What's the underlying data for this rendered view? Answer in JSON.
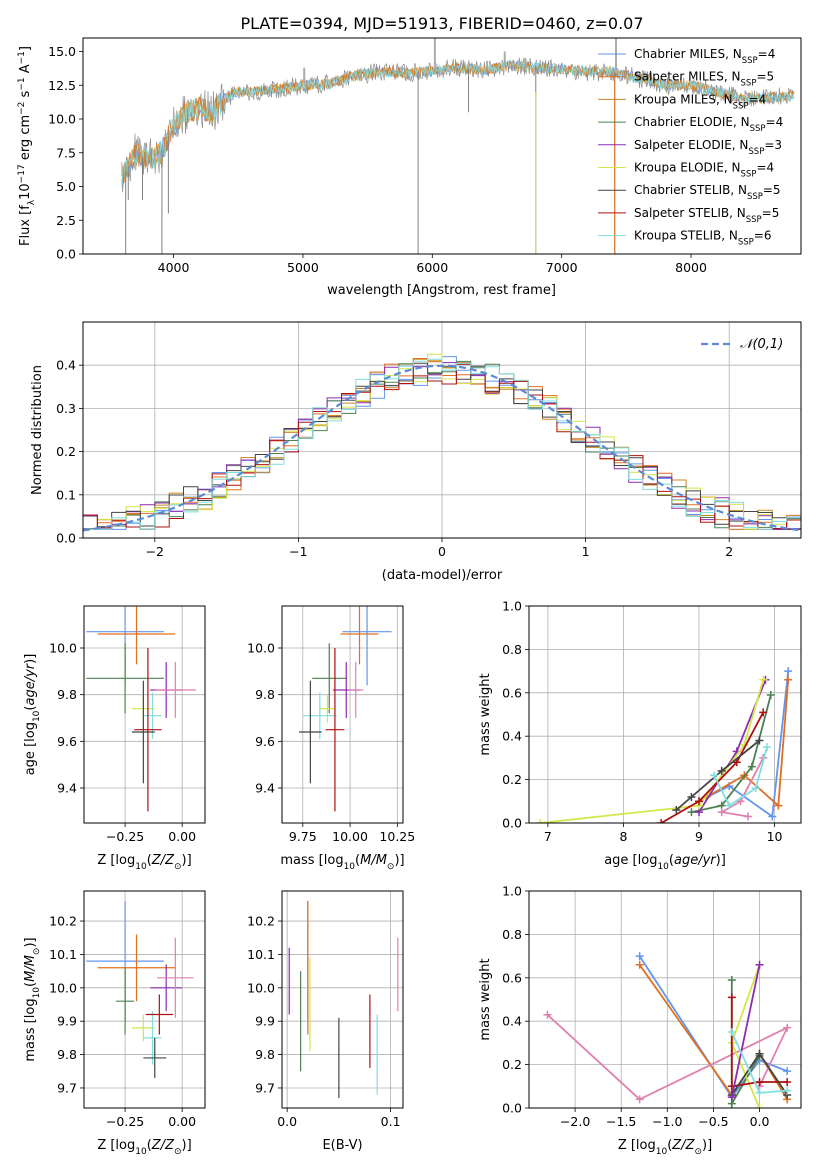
{
  "title": "PLATE=0394, MJD=51913, FIBERID=0460, z=0.07",
  "colors": {
    "chabrier_miles": "#6495ed",
    "salpeter_miles": "#e07020",
    "kroupa_miles": "#cc8822",
    "chabrier_elodie": "#4d8050",
    "salpeter_elodie": "#8e2bb0",
    "kroupa_elodie": "#d4e64a",
    "chabrier_stelib": "#444444",
    "salpeter_stelib": "#b01010",
    "kroupa_stelib": "#80dde0",
    "extra_pink": "#e080b0",
    "spectrum_grey": "#808080",
    "normal_curve": "#5b8bd6",
    "grid": "#b0b0b0"
  },
  "chart_data": [
    {
      "id": "spectrum",
      "type": "line",
      "title": "PLATE=0394, MJD=51913, FIBERID=0460, z=0.07",
      "xlabel": "wavelength [Angstrom, rest frame]",
      "ylabel": "Flux [f",
      "ylabel_full": "Flux [fλ10−17 erg cm−2 s−1 A−1]",
      "xlim": [
        3300,
        8850
      ],
      "ylim": [
        0,
        16
      ],
      "xticks": [
        4000,
        5000,
        6000,
        7000,
        8000
      ],
      "yticks": [
        0.0,
        2.5,
        5.0,
        7.5,
        10.0,
        12.5,
        15.0
      ],
      "grid": false,
      "legend_placement": "right",
      "legend": [
        {
          "label": "Chabrier MILES, N",
          "sub": "SSP",
          "suffix": "=4",
          "color_key": "chabrier_miles"
        },
        {
          "label": "Salpeter MILES, N",
          "sub": "SSP",
          "suffix": "=5",
          "color_key": "salpeter_miles"
        },
        {
          "label": "Kroupa MILES, N",
          "sub": "SSP",
          "suffix": "=4",
          "color_key": "kroupa_miles"
        },
        {
          "label": "Chabrier ELODIE, N",
          "sub": "SSP",
          "suffix": "=4",
          "color_key": "chabrier_elodie"
        },
        {
          "label": "Salpeter ELODIE, N",
          "sub": "SSP",
          "suffix": "=3",
          "color_key": "salpeter_elodie"
        },
        {
          "label": "Kroupa ELODIE, N",
          "sub": "SSP",
          "suffix": "=4",
          "color_key": "kroupa_elodie"
        },
        {
          "label": "Chabrier STELIB, N",
          "sub": "SSP",
          "suffix": "=5",
          "color_key": "chabrier_stelib"
        },
        {
          "label": "Salpeter STELIB, N",
          "sub": "SSP",
          "suffix": "=5",
          "color_key": "salpeter_stelib"
        },
        {
          "label": "Kroupa STELIB, N",
          "sub": "SSP",
          "suffix": "=6",
          "color_key": "kroupa_stelib"
        }
      ],
      "continuum": [
        [
          3600,
          5.5
        ],
        [
          3700,
          7.5
        ],
        [
          3800,
          7.0
        ],
        [
          3900,
          7.5
        ],
        [
          4000,
          9.5
        ],
        [
          4100,
          10.5
        ],
        [
          4200,
          10.8
        ],
        [
          4300,
          10.5
        ],
        [
          4400,
          11.5
        ],
        [
          4500,
          12.0
        ],
        [
          4600,
          12.0
        ],
        [
          4800,
          12.2
        ],
        [
          5000,
          12.5
        ],
        [
          5200,
          12.6
        ],
        [
          5400,
          13.2
        ],
        [
          5600,
          13.5
        ],
        [
          5800,
          13.4
        ],
        [
          6000,
          13.6
        ],
        [
          6200,
          13.8
        ],
        [
          6400,
          13.6
        ],
        [
          6600,
          14.0
        ],
        [
          6800,
          13.8
        ],
        [
          7000,
          13.7
        ],
        [
          7200,
          13.5
        ],
        [
          7400,
          13.5
        ],
        [
          7600,
          13.0
        ],
        [
          7800,
          12.5
        ],
        [
          8000,
          12.5
        ],
        [
          8200,
          12.0
        ],
        [
          8400,
          11.5
        ],
        [
          8600,
          11.6
        ],
        [
          8800,
          11.7
        ]
      ],
      "absorption_spikes": [
        [
          3630,
          0.0
        ],
        [
          3650,
          4.0
        ],
        [
          3910,
          0.0
        ],
        [
          3960,
          3.0
        ],
        [
          5890,
          0.0
        ],
        [
          6280,
          10.5
        ],
        [
          6800,
          0.0
        ],
        [
          7410,
          0.0
        ],
        [
          7600,
          13.5
        ],
        [
          3760,
          4.0
        ]
      ],
      "emission_spikes": [
        [
          6560,
          15.0
        ],
        [
          5010,
          13.8
        ],
        [
          6720,
          14.5
        ],
        [
          6020,
          16.0
        ],
        [
          7020,
          13.8
        ],
        [
          7420,
          16.0
        ]
      ]
    },
    {
      "id": "residuals",
      "type": "line",
      "xlabel": "(data-model)/error",
      "ylabel": "Normed distribution",
      "xlim": [
        -2.5,
        2.5
      ],
      "ylim": [
        0,
        0.5
      ],
      "xticks": [
        -2,
        -1,
        0,
        1,
        2
      ],
      "yticks": [
        0.0,
        0.1,
        0.2,
        0.3,
        0.4
      ],
      "grid": true,
      "legend_placement": "top-right",
      "legend": [
        {
          "label": "𝒩(0,1)",
          "color_key": "normal_curve",
          "dashed": true
        }
      ],
      "bin_width": 0.1,
      "series_count": 9
    },
    {
      "id": "z-age",
      "type": "scatter",
      "xlabel": "Z [log",
      "xlabel_full": "Z [log10(Z/Z⊙)]",
      "ylabel": "age  [log",
      "ylabel_full": "age [log10(age/yr)]",
      "xlim": [
        -0.43,
        0.1
      ],
      "ylim": [
        9.25,
        10.18
      ],
      "xticks": [
        -0.25,
        0.0
      ],
      "xtick_labels": [
        "−0.25",
        "0.00"
      ],
      "yticks": [
        9.4,
        9.6,
        9.8,
        10.0
      ],
      "grid": true,
      "points": [
        {
          "x": -0.25,
          "y": 10.07,
          "xerr": 0.17,
          "yerr": 0.23,
          "color_key": "chabrier_miles"
        },
        {
          "x": -0.2,
          "y": 10.06,
          "xerr": 0.17,
          "yerr": 0.13,
          "color_key": "salpeter_miles"
        },
        {
          "x": -0.25,
          "y": 9.87,
          "xerr": 0.17,
          "yerr": 0.15,
          "color_key": "chabrier_elodie"
        },
        {
          "x": -0.07,
          "y": 9.82,
          "xerr": 0.07,
          "yerr": 0.12,
          "color_key": "salpeter_elodie"
        },
        {
          "x": -0.03,
          "y": 9.82,
          "xerr": 0.09,
          "yerr": 0.12,
          "color_key": "extra_pink"
        },
        {
          "x": -0.17,
          "y": 9.74,
          "xerr": 0.05,
          "yerr": 0.06,
          "color_key": "kroupa_elodie"
        },
        {
          "x": -0.13,
          "y": 9.71,
          "xerr": 0.04,
          "yerr": 0.1,
          "color_key": "kroupa_stelib"
        },
        {
          "x": -0.15,
          "y": 9.65,
          "xerr": 0.06,
          "yerr": 0.35,
          "color_key": "salpeter_stelib"
        },
        {
          "x": -0.17,
          "y": 9.64,
          "xerr": 0.05,
          "yerr": 0.22,
          "color_key": "chabrier_stelib"
        }
      ]
    },
    {
      "id": "mass-age",
      "type": "scatter",
      "xlabel": "mass [log",
      "xlabel_full": "mass [log10(M/M⊙)]",
      "xlim": [
        9.64,
        10.28
      ],
      "ylim": [
        9.25,
        10.18
      ],
      "xticks": [
        9.75,
        10.0,
        10.25
      ],
      "xtick_labels": [
        "9.75",
        "10.00",
        "10.25"
      ],
      "yticks": [
        9.4,
        9.6,
        9.8,
        10.0
      ],
      "grid": true,
      "points": [
        {
          "x": 10.09,
          "y": 10.07,
          "xerr": 0.13,
          "yerr": 0.23,
          "color_key": "chabrier_miles"
        },
        {
          "x": 10.05,
          "y": 10.06,
          "xerr": 0.1,
          "yerr": 0.13,
          "color_key": "salpeter_miles"
        },
        {
          "x": 9.89,
          "y": 9.87,
          "xerr": 0.09,
          "yerr": 0.15,
          "color_key": "chabrier_elodie"
        },
        {
          "x": 9.98,
          "y": 9.82,
          "xerr": 0.07,
          "yerr": 0.12,
          "color_key": "salpeter_elodie"
        },
        {
          "x": 10.03,
          "y": 9.82,
          "xerr": 0.04,
          "yerr": 0.12,
          "color_key": "extra_pink"
        },
        {
          "x": 9.88,
          "y": 9.74,
          "xerr": 0.04,
          "yerr": 0.06,
          "color_key": "kroupa_elodie"
        },
        {
          "x": 9.84,
          "y": 9.71,
          "xerr": 0.09,
          "yerr": 0.1,
          "color_key": "kroupa_stelib"
        },
        {
          "x": 9.92,
          "y": 9.65,
          "xerr": 0.05,
          "yerr": 0.35,
          "color_key": "salpeter_stelib"
        },
        {
          "x": 9.79,
          "y": 9.64,
          "xerr": 0.06,
          "yerr": 0.22,
          "color_key": "chabrier_stelib"
        }
      ]
    },
    {
      "id": "age-weight",
      "type": "line",
      "xlabel": "age  [log",
      "xlabel_full": "age [log10(age/yr)]",
      "ylabel": "mass weight",
      "xlim": [
        6.75,
        10.35
      ],
      "ylim": [
        0,
        1.0
      ],
      "xticks": [
        7,
        8,
        9,
        10
      ],
      "yticks": [
        0.0,
        0.2,
        0.4,
        0.6,
        0.8,
        1.0
      ],
      "grid": true,
      "series": [
        {
          "color_key": "chabrier_miles",
          "x": [
            10.18,
            9.97,
            9.4,
            9.0
          ],
          "y": [
            0.7,
            0.03,
            0.17,
            0.1
          ]
        },
        {
          "color_key": "salpeter_miles",
          "x": [
            10.18,
            10.05,
            9.6,
            9.1
          ],
          "y": [
            0.66,
            0.08,
            0.22,
            0.12
          ]
        },
        {
          "color_key": "chabrier_elodie",
          "x": [
            9.95,
            9.7,
            9.3,
            8.9
          ],
          "y": [
            0.59,
            0.26,
            0.08,
            0.05
          ]
        },
        {
          "color_key": "salpeter_elodie",
          "x": [
            9.88,
            9.5,
            9.0
          ],
          "y": [
            0.66,
            0.33,
            0.05
          ]
        },
        {
          "color_key": "kroupa_elodie",
          "x": [
            9.85,
            9.6,
            9.0,
            6.9
          ],
          "y": [
            0.66,
            0.36,
            0.08,
            0.0
          ]
        },
        {
          "color_key": "salpeter_stelib",
          "x": [
            9.85,
            9.5,
            9.0,
            8.5
          ],
          "y": [
            0.51,
            0.28,
            0.1,
            0.0
          ]
        },
        {
          "color_key": "chabrier_stelib",
          "x": [
            9.8,
            9.3,
            8.9,
            8.7
          ],
          "y": [
            0.38,
            0.24,
            0.12,
            0.06
          ]
        },
        {
          "color_key": "extra_pink",
          "x": [
            9.85,
            9.55,
            9.3,
            9.65
          ],
          "y": [
            0.3,
            0.1,
            0.05,
            0.03
          ]
        },
        {
          "color_key": "kroupa_stelib",
          "x": [
            9.9,
            9.75,
            9.4,
            9.2
          ],
          "y": [
            0.35,
            0.16,
            0.08,
            0.22
          ]
        }
      ]
    },
    {
      "id": "z-mass",
      "type": "scatter",
      "xlabel": "Z [log",
      "xlabel_full": "Z [log10(Z/Z⊙)]",
      "ylabel": "mass [log",
      "ylabel_full": "mass [log10(M/M⊙)]",
      "xlim": [
        -0.43,
        0.1
      ],
      "ylim": [
        9.64,
        10.29
      ],
      "xticks": [
        -0.25,
        0.0
      ],
      "xtick_labels": [
        "−0.25",
        "0.00"
      ],
      "yticks": [
        9.7,
        9.8,
        9.9,
        10.0,
        10.1,
        10.2
      ],
      "grid": true,
      "points": [
        {
          "x": -0.25,
          "y": 10.08,
          "xerr": 0.17,
          "yerr": 0.18,
          "color_key": "chabrier_miles"
        },
        {
          "x": -0.2,
          "y": 10.06,
          "xerr": 0.17,
          "yerr": 0.1,
          "color_key": "salpeter_miles"
        },
        {
          "x": -0.25,
          "y": 9.96,
          "xerr": 0.04,
          "yerr": 0.1,
          "color_key": "chabrier_elodie"
        },
        {
          "x": -0.07,
          "y": 10.0,
          "xerr": 0.07,
          "yerr": 0.07,
          "color_key": "salpeter_elodie"
        },
        {
          "x": -0.03,
          "y": 10.03,
          "xerr": 0.08,
          "yerr": 0.12,
          "color_key": "extra_pink"
        },
        {
          "x": -0.17,
          "y": 9.88,
          "xerr": 0.05,
          "yerr": 0.04,
          "color_key": "kroupa_elodie"
        },
        {
          "x": -0.13,
          "y": 9.85,
          "xerr": 0.04,
          "yerr": 0.08,
          "color_key": "kroupa_stelib"
        },
        {
          "x": -0.1,
          "y": 9.92,
          "xerr": 0.06,
          "yerr": 0.06,
          "color_key": "salpeter_stelib"
        },
        {
          "x": -0.12,
          "y": 9.79,
          "xerr": 0.05,
          "yerr": 0.06,
          "color_key": "chabrier_stelib"
        }
      ]
    },
    {
      "id": "ebv-mass",
      "type": "scatter",
      "xlabel": "E(B-V)",
      "xlim": [
        -0.005,
        0.112
      ],
      "ylim": [
        9.64,
        10.29
      ],
      "xticks": [
        0.0,
        0.1
      ],
      "xtick_labels": [
        "0.0",
        "0.1"
      ],
      "yticks": [
        9.7,
        9.8,
        9.9,
        10.0,
        10.1,
        10.2
      ],
      "grid": true,
      "points": [
        {
          "x": 0.02,
          "y": 10.08,
          "yerr": 0.18,
          "color_key": "chabrier_miles"
        },
        {
          "x": 0.02,
          "y": 10.06,
          "yerr": 0.2,
          "color_key": "salpeter_miles"
        },
        {
          "x": 0.013,
          "y": 9.9,
          "yerr": 0.15,
          "color_key": "chabrier_elodie"
        },
        {
          "x": 0.002,
          "y": 10.02,
          "yerr": 0.1,
          "color_key": "salpeter_elodie"
        },
        {
          "x": 0.107,
          "y": 10.04,
          "yerr": 0.11,
          "color_key": "extra_pink"
        },
        {
          "x": 0.022,
          "y": 9.95,
          "yerr": 0.14,
          "color_key": "kroupa_elodie"
        },
        {
          "x": 0.087,
          "y": 9.8,
          "yerr": 0.12,
          "color_key": "kroupa_stelib"
        },
        {
          "x": 0.08,
          "y": 9.87,
          "yerr": 0.11,
          "color_key": "salpeter_stelib"
        },
        {
          "x": 0.05,
          "y": 9.79,
          "yerr": 0.12,
          "color_key": "chabrier_stelib"
        }
      ]
    },
    {
      "id": "z-weight",
      "type": "line",
      "xlabel": "Z [log",
      "xlabel_full": "Z [log10(Z/Z⊙)]",
      "ylabel": "mass weight",
      "xlim": [
        -2.5,
        0.45
      ],
      "ylim": [
        0,
        1.0
      ],
      "xticks": [
        -2.0,
        -1.5,
        -1.0,
        -0.5,
        0.0
      ],
      "xtick_labels": [
        "−2.0",
        "−1.5",
        "−1.0",
        "−0.5",
        "0.0"
      ],
      "yticks": [
        0.0,
        0.2,
        0.4,
        0.6,
        0.8,
        1.0
      ],
      "grid": true,
      "series": [
        {
          "color_key": "chabrier_miles",
          "x": [
            -1.3,
            -0.3,
            0.0,
            0.3
          ],
          "y": [
            0.7,
            0.05,
            0.22,
            0.17
          ]
        },
        {
          "color_key": "salpeter_miles",
          "x": [
            -1.3,
            -0.3,
            0.0,
            0.3
          ],
          "y": [
            0.66,
            0.06,
            0.25,
            0.04
          ]
        },
        {
          "color_key": "extra_pink",
          "x": [
            -2.3,
            -1.3,
            0.3,
            0.0
          ],
          "y": [
            0.43,
            0.04,
            0.37,
            0.1
          ]
        },
        {
          "color_key": "chabrier_elodie",
          "x": [
            -0.3,
            -0.3,
            0.0
          ],
          "y": [
            0.59,
            0.02,
            0.24
          ]
        },
        {
          "color_key": "kroupa_elodie",
          "x": [
            0.0,
            -0.3,
            0.0
          ],
          "y": [
            0.66,
            0.3,
            0.0
          ]
        },
        {
          "color_key": "salpeter_stelib",
          "x": [
            -0.3,
            -0.3,
            0.0,
            0.3
          ],
          "y": [
            0.51,
            0.1,
            0.12,
            0.12
          ]
        },
        {
          "color_key": "chabrier_stelib",
          "x": [
            -0.3,
            0.0,
            0.3
          ],
          "y": [
            0.06,
            0.25,
            0.06
          ]
        },
        {
          "color_key": "salpeter_elodie",
          "x": [
            0.0,
            -0.3
          ],
          "y": [
            0.66,
            0.05
          ]
        },
        {
          "color_key": "kroupa_stelib",
          "x": [
            -0.3,
            0.0,
            0.3
          ],
          "y": [
            0.35,
            0.07,
            0.08
          ]
        }
      ]
    }
  ]
}
